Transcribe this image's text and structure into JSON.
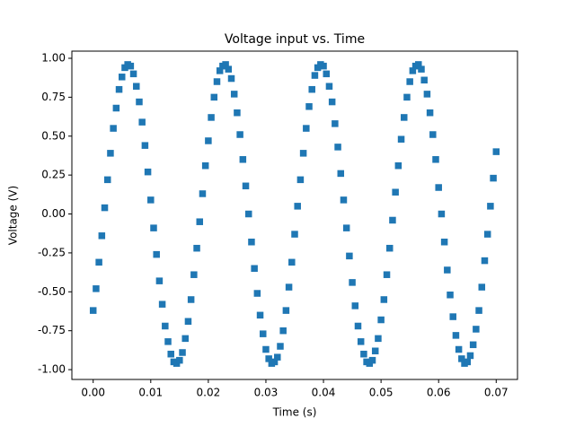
{
  "chart_data": {
    "type": "scatter",
    "title": "Voltage input vs. Time",
    "x_label": "Time (s)",
    "y_label": "Voltage (V)",
    "marker": "square",
    "color": "#1f77b4",
    "grid": false,
    "xlim": [
      -0.0037,
      0.0737
    ],
    "ylim": [
      -1.063,
      1.046
    ],
    "xticks": [
      {
        "value": 0,
        "label": "0.00"
      },
      {
        "value": 0.01,
        "label": "0.01"
      },
      {
        "value": 0.02,
        "label": "0.02"
      },
      {
        "value": 0.03,
        "label": "0.03"
      },
      {
        "value": 0.04,
        "label": "0.04"
      },
      {
        "value": 0.05,
        "label": "0.05"
      },
      {
        "value": 0.06,
        "label": "0.06"
      },
      {
        "value": 0.07,
        "label": "0.07"
      }
    ],
    "yticks": [
      {
        "value": -1,
        "label": "-1.00"
      },
      {
        "value": -0.75,
        "label": "-0.75"
      },
      {
        "value": -0.5,
        "label": "-0.50"
      },
      {
        "value": -0.25,
        "label": "-0.25"
      },
      {
        "value": 0,
        "label": "0.00"
      },
      {
        "value": 0.25,
        "label": "0.25"
      },
      {
        "value": 0.5,
        "label": "0.50"
      },
      {
        "value": 0.75,
        "label": "0.75"
      },
      {
        "value": 1,
        "label": "1.00"
      }
    ],
    "x": [
      0,
      0.0005,
      0.001,
      0.0015,
      0.002,
      0.0025,
      0.003,
      0.0035,
      0.004,
      0.0045,
      0.005,
      0.0055,
      0.006,
      0.0065,
      0.007,
      0.0075,
      0.008,
      0.0085,
      0.009,
      0.0095,
      0.01,
      0.0105,
      0.011,
      0.0115,
      0.012,
      0.0125,
      0.013,
      0.0135,
      0.014,
      0.0145,
      0.015,
      0.0155,
      0.016,
      0.0165,
      0.017,
      0.0175,
      0.018,
      0.0185,
      0.019,
      0.0195,
      0.02,
      0.0205,
      0.021,
      0.0215,
      0.022,
      0.0225,
      0.023,
      0.0235,
      0.024,
      0.0245,
      0.025,
      0.0255,
      0.026,
      0.0265,
      0.027,
      0.0275,
      0.028,
      0.0285,
      0.029,
      0.0295,
      0.03,
      0.0305,
      0.031,
      0.0315,
      0.032,
      0.0325,
      0.033,
      0.0335,
      0.034,
      0.0345,
      0.035,
      0.0355,
      0.036,
      0.0365,
      0.037,
      0.0375,
      0.038,
      0.0385,
      0.039,
      0.0395,
      0.04,
      0.0405,
      0.041,
      0.0415,
      0.042,
      0.0425,
      0.043,
      0.0435,
      0.044,
      0.0445,
      0.045,
      0.0455,
      0.046,
      0.0465,
      0.047,
      0.0475,
      0.048,
      0.0485,
      0.049,
      0.0495,
      0.05,
      0.0505,
      0.051,
      0.0515,
      0.052,
      0.0525,
      0.053,
      0.0535,
      0.054,
      0.0545,
      0.055,
      0.0555,
      0.056,
      0.0565,
      0.057,
      0.0575,
      0.058,
      0.0585,
      0.059,
      0.0595,
      0.06,
      0.0605,
      0.061,
      0.0615,
      0.062,
      0.0625,
      0.063,
      0.0635,
      0.064,
      0.0645,
      0.065,
      0.0655,
      0.066,
      0.0665,
      0.067,
      0.0675,
      0.068,
      0.0685,
      0.069,
      0.0695,
      0.07
    ],
    "values": [
      -0.62,
      -0.48,
      -0.31,
      -0.14,
      0.04,
      0.22,
      0.39,
      0.55,
      0.68,
      0.8,
      0.88,
      0.94,
      0.96,
      0.95,
      0.9,
      0.82,
      0.72,
      0.59,
      0.44,
      0.27,
      0.09,
      -0.09,
      -0.26,
      -0.43,
      -0.58,
      -0.72,
      -0.82,
      -0.9,
      -0.95,
      -0.96,
      -0.94,
      -0.89,
      -0.8,
      -0.69,
      -0.55,
      -0.39,
      -0.22,
      -0.05,
      0.13,
      0.31,
      0.47,
      0.62,
      0.75,
      0.85,
      0.92,
      0.95,
      0.96,
      0.93,
      0.87,
      0.77,
      0.65,
      0.51,
      0.35,
      0.18,
      0,
      -0.18,
      -0.35,
      -0.51,
      -0.65,
      -0.77,
      -0.87,
      -0.93,
      -0.96,
      -0.95,
      -0.92,
      -0.85,
      -0.75,
      -0.62,
      -0.47,
      -0.31,
      -0.13,
      0.05,
      0.22,
      0.39,
      0.55,
      0.69,
      0.8,
      0.89,
      0.94,
      0.96,
      0.95,
      0.9,
      0.82,
      0.72,
      0.58,
      0.43,
      0.26,
      0.09,
      -0.09,
      -0.27,
      -0.44,
      -0.59,
      -0.72,
      -0.82,
      -0.9,
      -0.95,
      -0.96,
      -0.94,
      -0.88,
      -0.8,
      -0.68,
      -0.55,
      -0.39,
      -0.22,
      -0.04,
      0.14,
      0.31,
      0.48,
      0.62,
      0.75,
      0.85,
      0.92,
      0.95,
      0.96,
      0.93,
      0.86,
      0.77,
      0.65,
      0.51,
      0.35,
      0.17,
      0,
      -0.18,
      -0.36,
      -0.52,
      -0.66,
      -0.78,
      -0.87,
      -0.93,
      -0.96,
      -0.95,
      -0.91,
      -0.84,
      -0.74,
      -0.62,
      -0.47,
      -0.3,
      -0.13,
      0.05,
      0.23,
      0.4
    ]
  }
}
